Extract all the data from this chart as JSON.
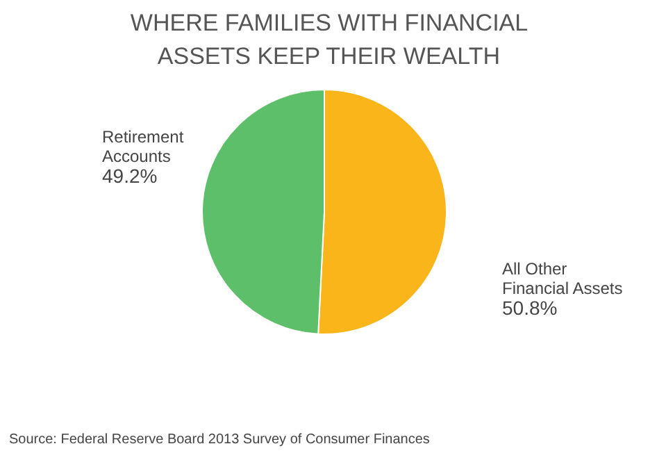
{
  "chart_data": {
    "type": "pie",
    "title": "WHERE FAMILIES WITH FINANCIAL ASSETS KEEP THEIR WEALTH",
    "categories": [
      "All Other Financial Assets",
      "Retirement Accounts"
    ],
    "values": [
      50.8,
      49.2
    ],
    "colors": [
      "#f9b51a",
      "#5ebf6b"
    ],
    "value_labels": [
      "50.8%",
      "49.2%"
    ],
    "annotations": [
      "Source: Federal Reserve Board 2013 Survey of Consumer Finances"
    ]
  }
}
